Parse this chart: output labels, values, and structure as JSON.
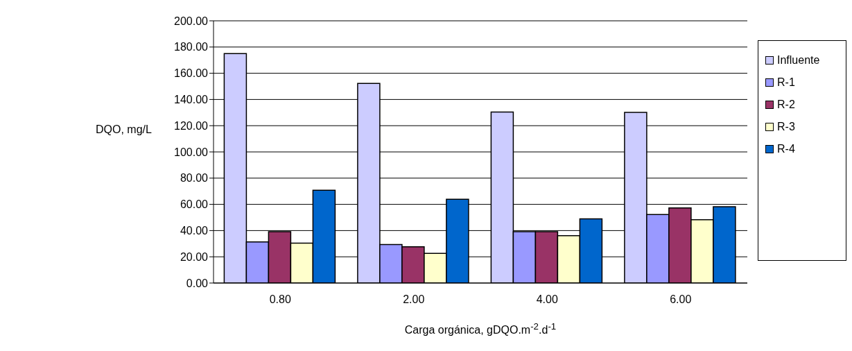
{
  "chart_data": {
    "type": "bar",
    "xlabel": "Carga orgánica, gDQO.m$^{-2}$.d$^{-1}$",
    "ylabel": "DQO, mg/L",
    "categories": [
      "0.80",
      "2.00",
      "4.00",
      "6.00"
    ],
    "series": [
      {
        "name": "Influente",
        "color": "#ccccff",
        "values": [
          175,
          152.3,
          130.4,
          130.2
        ]
      },
      {
        "name": "R-1",
        "color": "#9999ff",
        "values": [
          31.3,
          29.3,
          39.2,
          52.3
        ]
      },
      {
        "name": "R-2",
        "color": "#993366",
        "values": [
          39.2,
          27.6,
          39.2,
          57.3
        ]
      },
      {
        "name": "R-3",
        "color": "#ffffcc",
        "values": [
          30.4,
          22.6,
          36.1,
          48.3
        ]
      },
      {
        "name": "R-4",
        "color": "#0066cc",
        "values": [
          70.8,
          63.9,
          49.0,
          58.2
        ]
      }
    ],
    "ylim": [
      0,
      200
    ],
    "yticks": [
      {
        "value": 0,
        "label": "0.00"
      },
      {
        "value": 20,
        "label": "20.00"
      },
      {
        "value": 40,
        "label": "40.00"
      },
      {
        "value": 60,
        "label": "60.00"
      },
      {
        "value": 80,
        "label": "80.00"
      },
      {
        "value": 100,
        "label": "100.00"
      },
      {
        "value": 120,
        "label": "120.00"
      },
      {
        "value": 140,
        "label": "140.00"
      },
      {
        "value": 160,
        "label": "160.00"
      },
      {
        "value": 180,
        "label": "180.00"
      },
      {
        "value": 200,
        "label": "200.00"
      }
    ],
    "grid": "y",
    "legend": "right"
  }
}
